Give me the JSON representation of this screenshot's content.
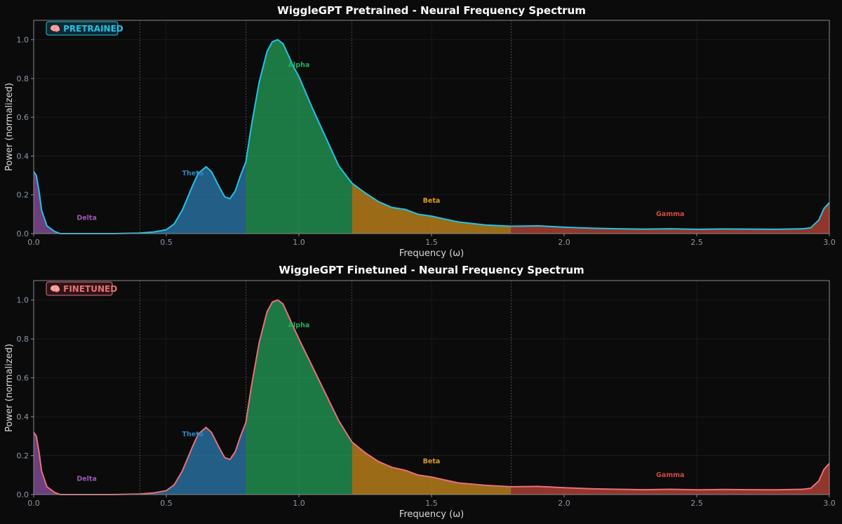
{
  "chart_data": [
    {
      "type": "area",
      "title": "WiggleGPT Pretrained - Neural Frequency Spectrum",
      "badge": "🧠 PRETRAINED",
      "xlabel": "Frequency (ω)",
      "ylabel": "Power (normalized)",
      "xlim": [
        0,
        3.0
      ],
      "ylim": [
        0,
        1.1
      ],
      "xticks": [
        "0.0",
        "0.5",
        "1.0",
        "1.5",
        "2.0",
        "2.5",
        "3.0"
      ],
      "yticks": [
        "0.0",
        "0.2",
        "0.4",
        "0.6",
        "0.8",
        "1.0"
      ],
      "grid": true,
      "line_color": "#22c3e6",
      "badge_color": "#22c3e6",
      "band_edges": [
        0.4,
        0.8,
        1.2,
        1.8
      ],
      "bands": [
        {
          "name": "Delta",
          "range": [
            0.0,
            0.4
          ],
          "color": "#9b59b6",
          "label_x": 0.2,
          "label_y": 0.07
        },
        {
          "name": "Theta",
          "range": [
            0.4,
            0.8
          ],
          "color": "#2e86c1",
          "label_x": 0.6,
          "label_y": 0.3
        },
        {
          "name": "Alpha",
          "range": [
            0.8,
            1.2
          ],
          "color": "#27ae60",
          "label_x": 1.0,
          "label_y": 0.86
        },
        {
          "name": "Beta",
          "range": [
            1.2,
            1.8
          ],
          "color": "#e09a1f",
          "label_x": 1.5,
          "label_y": 0.16
        },
        {
          "name": "Gamma",
          "range": [
            1.8,
            3.0
          ],
          "color": "#d24b3c",
          "label_x": 2.4,
          "label_y": 0.09
        }
      ],
      "x": [
        0.0,
        0.01,
        0.02,
        0.03,
        0.05,
        0.08,
        0.1,
        0.2,
        0.3,
        0.4,
        0.45,
        0.5,
        0.53,
        0.56,
        0.6,
        0.62,
        0.65,
        0.67,
        0.7,
        0.72,
        0.74,
        0.76,
        0.78,
        0.8,
        0.82,
        0.85,
        0.88,
        0.9,
        0.92,
        0.94,
        0.96,
        0.98,
        1.0,
        1.05,
        1.1,
        1.15,
        1.2,
        1.25,
        1.3,
        1.35,
        1.4,
        1.45,
        1.5,
        1.55,
        1.6,
        1.7,
        1.8,
        1.9,
        2.0,
        2.1,
        2.2,
        2.3,
        2.4,
        2.5,
        2.6,
        2.7,
        2.8,
        2.9,
        2.93,
        2.96,
        2.98,
        3.0
      ],
      "series": [
        {
          "values": [
            0.32,
            0.3,
            0.22,
            0.12,
            0.04,
            0.01,
            0.0,
            0.0,
            0.0,
            0.003,
            0.008,
            0.02,
            0.05,
            0.12,
            0.25,
            0.31,
            0.345,
            0.32,
            0.24,
            0.19,
            0.18,
            0.22,
            0.3,
            0.37,
            0.55,
            0.78,
            0.94,
            0.99,
            1.0,
            0.98,
            0.92,
            0.86,
            0.81,
            0.65,
            0.5,
            0.35,
            0.26,
            0.21,
            0.165,
            0.135,
            0.125,
            0.1,
            0.09,
            0.075,
            0.06,
            0.045,
            0.038,
            0.04,
            0.033,
            0.028,
            0.025,
            0.023,
            0.025,
            0.022,
            0.024,
            0.023,
            0.022,
            0.025,
            0.03,
            0.07,
            0.13,
            0.16
          ]
        }
      ]
    },
    {
      "type": "area",
      "title": "WiggleGPT Finetuned - Neural Frequency Spectrum",
      "badge": "🧠 FINETUNED",
      "xlabel": "Frequency (ω)",
      "ylabel": "Power (normalized)",
      "xlim": [
        0,
        3.0
      ],
      "ylim": [
        0,
        1.1
      ],
      "xticks": [
        "0.0",
        "0.5",
        "1.0",
        "1.5",
        "2.0",
        "2.5",
        "3.0"
      ],
      "yticks": [
        "0.0",
        "0.2",
        "0.4",
        "0.6",
        "0.8",
        "1.0"
      ],
      "grid": true,
      "line_color": "#e8707a",
      "badge_color": "#e8707a",
      "band_edges": [
        0.4,
        0.8,
        1.2,
        1.8
      ],
      "bands": [
        {
          "name": "Delta",
          "range": [
            0.0,
            0.4
          ],
          "color": "#9b59b6",
          "label_x": 0.2,
          "label_y": 0.07
        },
        {
          "name": "Theta",
          "range": [
            0.4,
            0.8
          ],
          "color": "#2e86c1",
          "label_x": 0.6,
          "label_y": 0.3
        },
        {
          "name": "Alpha",
          "range": [
            0.8,
            1.2
          ],
          "color": "#27ae60",
          "label_x": 1.0,
          "label_y": 0.86
        },
        {
          "name": "Beta",
          "range": [
            1.2,
            1.8
          ],
          "color": "#e09a1f",
          "label_x": 1.5,
          "label_y": 0.16
        },
        {
          "name": "Gamma",
          "range": [
            1.8,
            3.0
          ],
          "color": "#d24b3c",
          "label_x": 2.4,
          "label_y": 0.09
        }
      ],
      "x": [
        0.0,
        0.01,
        0.02,
        0.03,
        0.05,
        0.08,
        0.1,
        0.2,
        0.3,
        0.4,
        0.45,
        0.5,
        0.53,
        0.56,
        0.6,
        0.62,
        0.65,
        0.67,
        0.7,
        0.72,
        0.74,
        0.76,
        0.78,
        0.8,
        0.82,
        0.85,
        0.88,
        0.9,
        0.92,
        0.94,
        0.96,
        0.98,
        1.0,
        1.05,
        1.1,
        1.15,
        1.2,
        1.25,
        1.3,
        1.35,
        1.4,
        1.45,
        1.5,
        1.55,
        1.6,
        1.7,
        1.8,
        1.9,
        2.0,
        2.1,
        2.2,
        2.3,
        2.4,
        2.5,
        2.6,
        2.7,
        2.8,
        2.9,
        2.93,
        2.96,
        2.98,
        3.0
      ],
      "series": [
        {
          "values": [
            0.32,
            0.3,
            0.22,
            0.12,
            0.04,
            0.01,
            0.0,
            0.0,
            0.0,
            0.003,
            0.008,
            0.02,
            0.05,
            0.12,
            0.25,
            0.31,
            0.345,
            0.32,
            0.24,
            0.19,
            0.18,
            0.22,
            0.3,
            0.37,
            0.55,
            0.78,
            0.94,
            0.99,
            1.0,
            0.98,
            0.92,
            0.86,
            0.8,
            0.66,
            0.52,
            0.38,
            0.27,
            0.215,
            0.17,
            0.14,
            0.125,
            0.1,
            0.09,
            0.075,
            0.06,
            0.048,
            0.04,
            0.042,
            0.035,
            0.03,
            0.027,
            0.025,
            0.027,
            0.024,
            0.026,
            0.025,
            0.024,
            0.027,
            0.032,
            0.07,
            0.13,
            0.16
          ]
        }
      ]
    }
  ]
}
